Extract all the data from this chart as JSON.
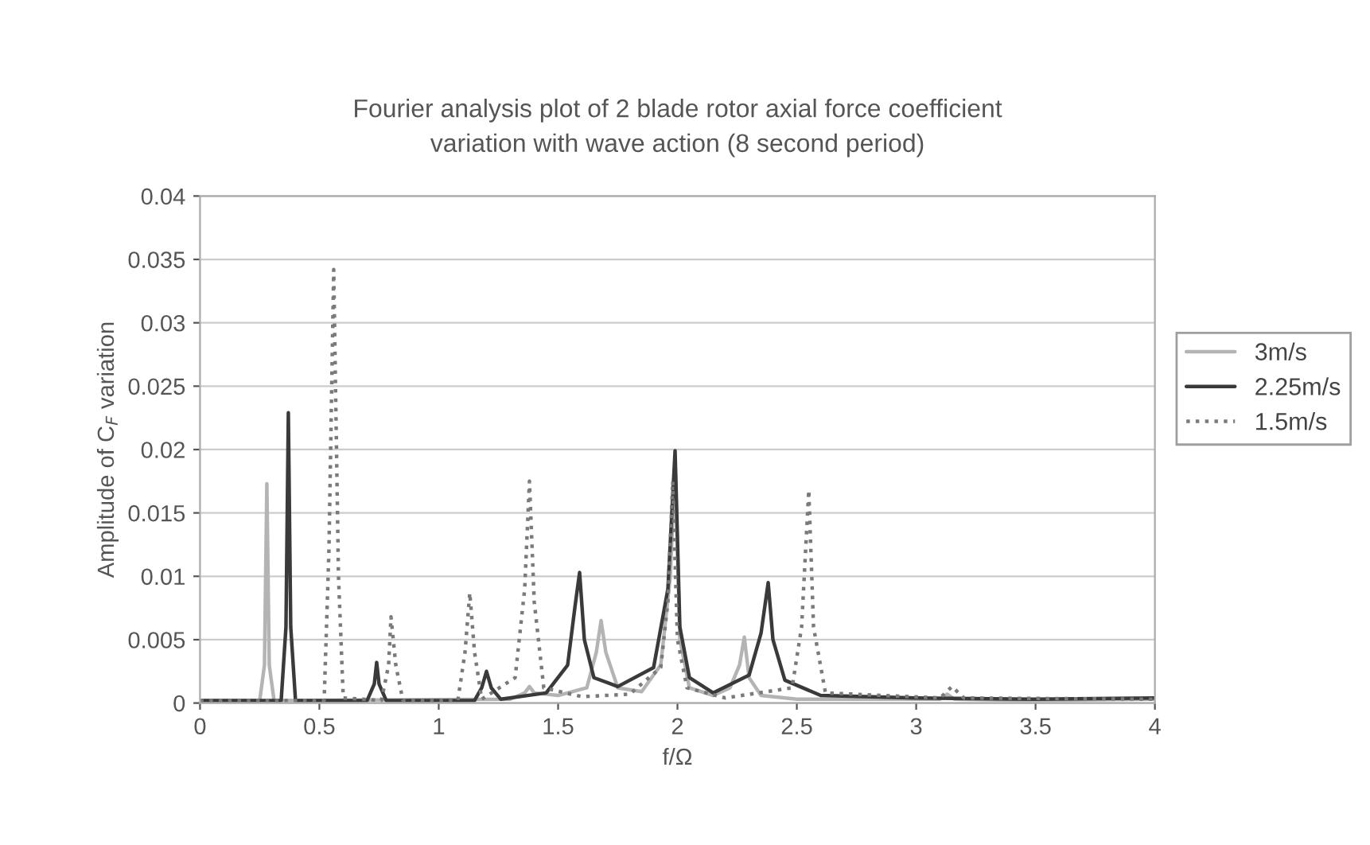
{
  "chart_data": {
    "type": "line",
    "title": "Fourier analysis plot of 2 blade rotor axial force coefficient\nvariation with wave action (8 second period)",
    "xlabel": "f/Ω",
    "ylabel": "Amplitude of C$_{F}$ variation",
    "xlim": [
      0,
      4
    ],
    "ylim": [
      0,
      0.04
    ],
    "xticks": [
      0,
      0.5,
      1,
      1.5,
      2,
      2.5,
      3,
      3.5,
      4
    ],
    "yticks": [
      0,
      0.005,
      0.01,
      0.015,
      0.02,
      0.025,
      0.03,
      0.035,
      0.04
    ],
    "grid": "y",
    "legend": "right",
    "marker": "none",
    "series": [
      {
        "name": "3m/s",
        "color": "#b4b4b4",
        "line_style": "solid",
        "x": [
          0,
          0.25,
          0.27,
          0.28,
          0.29,
          0.31,
          1.3,
          1.36,
          1.38,
          1.4,
          1.5,
          1.62,
          1.66,
          1.68,
          1.7,
          1.75,
          1.85,
          1.93,
          1.97,
          1.99,
          2.01,
          2.05,
          2.15,
          2.22,
          2.26,
          2.28,
          2.3,
          2.35,
          2.5,
          3.1,
          3.13,
          3.16,
          3.5,
          4
        ],
        "values": [
          0.0002,
          0.0002,
          0.003,
          0.0173,
          0.003,
          0.0002,
          0.0003,
          0.0008,
          0.0013,
          0.0008,
          0.0006,
          0.0012,
          0.004,
          0.0065,
          0.004,
          0.0012,
          0.0009,
          0.003,
          0.01,
          0.019,
          0.005,
          0.0012,
          0.0006,
          0.0012,
          0.003,
          0.0052,
          0.002,
          0.0006,
          0.0003,
          0.0003,
          0.0007,
          0.0003,
          0.0002,
          0.0003
        ]
      },
      {
        "name": "2.25m/s",
        "color": "#3a3a3a",
        "line_style": "solid",
        "x": [
          0,
          0.34,
          0.36,
          0.37,
          0.38,
          0.4,
          0.7,
          0.73,
          0.74,
          0.75,
          0.78,
          1.15,
          1.18,
          1.2,
          1.22,
          1.26,
          1.45,
          1.54,
          1.57,
          1.59,
          1.61,
          1.65,
          1.75,
          1.9,
          1.96,
          1.99,
          2.01,
          2.05,
          2.15,
          2.3,
          2.35,
          2.38,
          2.4,
          2.45,
          2.6,
          3,
          3.5,
          4
        ],
        "values": [
          0.0002,
          0.0002,
          0.006,
          0.0229,
          0.006,
          0.0002,
          0.0002,
          0.0015,
          0.0032,
          0.0015,
          0.0002,
          0.0002,
          0.0012,
          0.0025,
          0.0012,
          0.0003,
          0.0008,
          0.003,
          0.0075,
          0.0103,
          0.005,
          0.002,
          0.0013,
          0.0028,
          0.009,
          0.0199,
          0.006,
          0.002,
          0.0008,
          0.0022,
          0.0055,
          0.0095,
          0.005,
          0.0018,
          0.0006,
          0.0004,
          0.0003,
          0.0004
        ]
      },
      {
        "name": "1.5m/s",
        "color": "#7a7a7a",
        "line_style": "dotted",
        "x": [
          0,
          0.52,
          0.54,
          0.56,
          0.58,
          0.6,
          0.76,
          0.79,
          0.8,
          0.82,
          0.85,
          1.08,
          1.11,
          1.13,
          1.15,
          1.18,
          1.32,
          1.36,
          1.38,
          1.4,
          1.44,
          1.6,
          1.8,
          1.93,
          1.96,
          1.98,
          2.0,
          2.04,
          2.2,
          2.48,
          2.52,
          2.55,
          2.57,
          2.62,
          3.1,
          3.15,
          3.2,
          4
        ],
        "values": [
          0.0002,
          0.0002,
          0.012,
          0.0342,
          0.01,
          0.0004,
          0.0002,
          0.003,
          0.0068,
          0.003,
          0.0002,
          0.0002,
          0.004,
          0.0087,
          0.004,
          0.0003,
          0.002,
          0.009,
          0.0175,
          0.008,
          0.0012,
          0.0005,
          0.0007,
          0.0028,
          0.008,
          0.0175,
          0.005,
          0.0012,
          0.0004,
          0.0012,
          0.006,
          0.0168,
          0.006,
          0.0008,
          0.0004,
          0.0013,
          0.0004,
          0.0003
        ]
      }
    ]
  }
}
